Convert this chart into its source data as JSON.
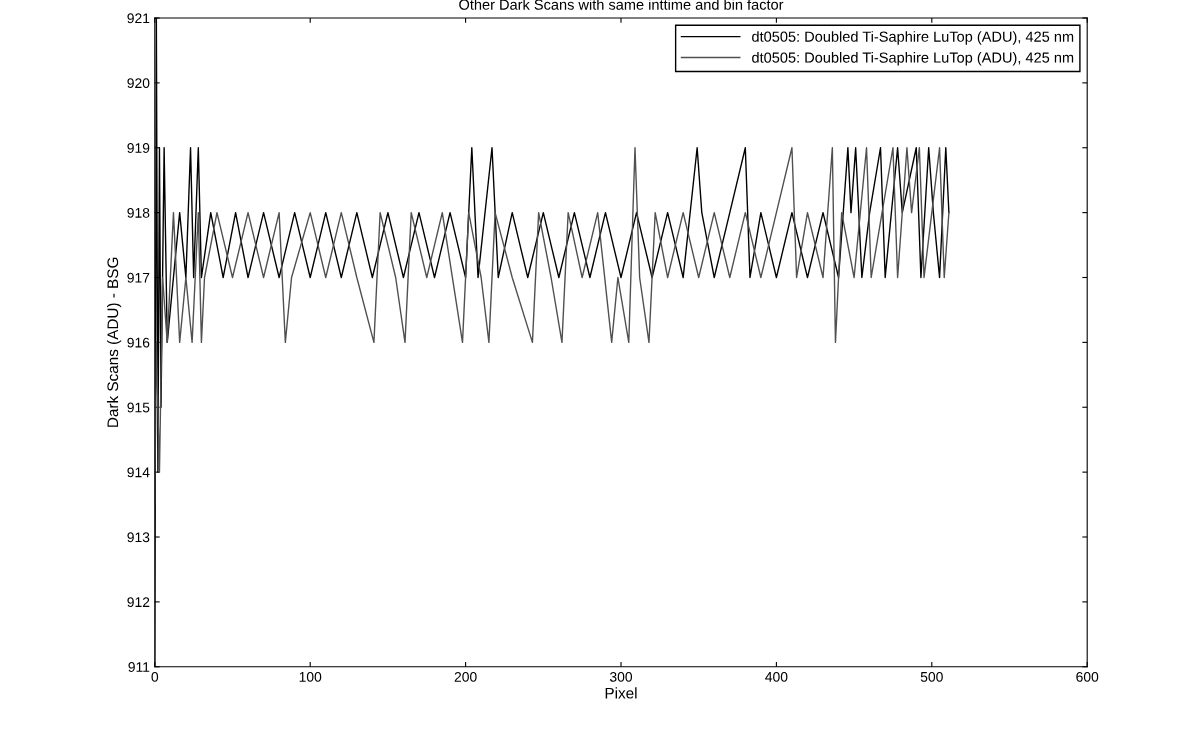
{
  "chart_data": {
    "type": "line",
    "title": "Other Dark Scans with same inttime and bin factor",
    "xlabel": "Pixel",
    "ylabel": "Dark Scans (ADU) - BSG",
    "xlim": [
      0,
      600
    ],
    "xticks": [
      0,
      100,
      200,
      300,
      400,
      500,
      600
    ],
    "ylim": [
      911,
      921
    ],
    "yticks": [
      911,
      912,
      913,
      914,
      915,
      916,
      917,
      918,
      919,
      920,
      921
    ],
    "grid": false,
    "legend": "top right",
    "marker": "none",
    "line_style": "solid",
    "series": [
      {
        "name": "dt0505: Doubled Ti-Saphire LuTop (ADU), 425 nm",
        "color": "#000000",
        "x": [
          0,
          1,
          2,
          3,
          4,
          6,
          8,
          12,
          16,
          20,
          23,
          25,
          28,
          30,
          36,
          44,
          52,
          60,
          70,
          80,
          90,
          100,
          110,
          120,
          130,
          140,
          150,
          160,
          170,
          180,
          190,
          200,
          204,
          208,
          217,
          221,
          230,
          240,
          250,
          260,
          270,
          280,
          290,
          300,
          310,
          320,
          330,
          340,
          349,
          352,
          360,
          370,
          380,
          383,
          390,
          400,
          410,
          420,
          430,
          440,
          446,
          448,
          451,
          455,
          460,
          467,
          470,
          478,
          481,
          490,
          493,
          498,
          501,
          505,
          509,
          511
        ],
        "values": [
          911,
          921,
          914,
          919,
          915,
          919,
          916,
          917,
          918,
          917,
          919,
          917,
          919,
          917,
          918,
          917,
          918,
          917,
          918,
          917,
          918,
          917,
          918,
          917,
          918,
          917,
          918,
          917,
          918,
          917,
          918,
          917,
          919,
          917,
          919,
          917,
          918,
          917,
          918,
          917,
          918,
          917,
          918,
          917,
          918,
          917,
          918,
          917,
          919,
          918,
          917,
          918,
          919,
          917,
          918,
          917,
          918,
          917,
          918,
          917,
          919,
          918,
          919,
          917,
          918,
          919,
          917,
          919,
          918,
          919,
          917,
          919,
          918,
          917,
          919,
          918
        ]
      },
      {
        "name": "dt0505: Doubled Ti-Saphire LuTop (ADU), 425 nm",
        "color": "#505050",
        "x": [
          0,
          1,
          3,
          5,
          8,
          12,
          16,
          20,
          24,
          28,
          30,
          32,
          40,
          50,
          60,
          70,
          80,
          84,
          88,
          100,
          110,
          120,
          130,
          141,
          145,
          155,
          161,
          165,
          175,
          185,
          198,
          202,
          210,
          215,
          219,
          230,
          243,
          247,
          255,
          262,
          266,
          275,
          285,
          294,
          298,
          305,
          309,
          312,
          318,
          322,
          330,
          340,
          350,
          360,
          370,
          380,
          390,
          400,
          410,
          413,
          420,
          430,
          436,
          438,
          442,
          450,
          458,
          461,
          468,
          475,
          478,
          484,
          487,
          492,
          495,
          500,
          505,
          508,
          511
        ],
        "values": [
          913.5,
          916,
          914,
          917,
          916,
          918,
          916,
          917,
          916,
          918,
          916,
          917,
          918,
          917,
          918,
          917,
          918,
          916,
          917,
          918,
          917,
          918,
          917,
          916,
          918,
          917,
          916,
          918,
          917,
          918,
          916,
          918,
          917,
          916,
          918,
          917,
          916,
          918,
          917,
          916,
          918,
          917,
          918,
          916,
          917,
          916,
          919,
          917,
          916,
          918,
          917,
          918,
          917,
          918,
          917,
          918,
          917,
          918,
          919,
          917,
          918,
          917,
          919,
          916,
          918,
          917,
          919,
          917,
          918,
          919,
          917,
          919,
          918,
          919,
          917,
          918,
          919,
          917,
          918
        ]
      }
    ]
  }
}
